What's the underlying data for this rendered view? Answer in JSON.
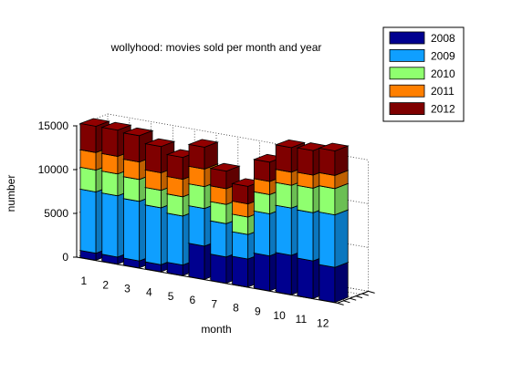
{
  "chart_data": {
    "type": "bar",
    "subtype": "3d-stacked",
    "title": "wollyhood: movies sold per month and year",
    "xlabel": "month",
    "ylabel": "number",
    "categories": [
      "1",
      "2",
      "3",
      "4",
      "5",
      "6",
      "7",
      "8",
      "9",
      "10",
      "11",
      "12"
    ],
    "zlim": [
      0,
      15000
    ],
    "zticks": [
      "0",
      "5000",
      "10000",
      "15000"
    ],
    "grid": true,
    "legend_position": "top-right",
    "series": [
      {
        "name": "2008",
        "color": "#00008f",
        "values": [
          800,
          800,
          800,
          800,
          1200,
          3800,
          3000,
          3200,
          4000,
          4500,
          4300,
          4000
        ]
      },
      {
        "name": "2009",
        "color": "#0f9fff",
        "values": [
          7000,
          7000,
          6800,
          6500,
          5600,
          4300,
          3800,
          2800,
          4800,
          5400,
          5500,
          6000
        ]
      },
      {
        "name": "2010",
        "color": "#8fff6f",
        "values": [
          2500,
          2500,
          2500,
          2000,
          2200,
          2500,
          2200,
          2000,
          2200,
          2600,
          2800,
          3000
        ]
      },
      {
        "name": "2011",
        "color": "#ff7f00",
        "values": [
          2000,
          2000,
          2000,
          2000,
          2000,
          2000,
          1800,
          1500,
          1500,
          1500,
          1500,
          1500
        ]
      },
      {
        "name": "2012",
        "color": "#7f0000",
        "values": [
          3000,
          3000,
          3000,
          3000,
          2500,
          2500,
          2000,
          2000,
          2200,
          2800,
          2800,
          2800
        ]
      }
    ]
  }
}
